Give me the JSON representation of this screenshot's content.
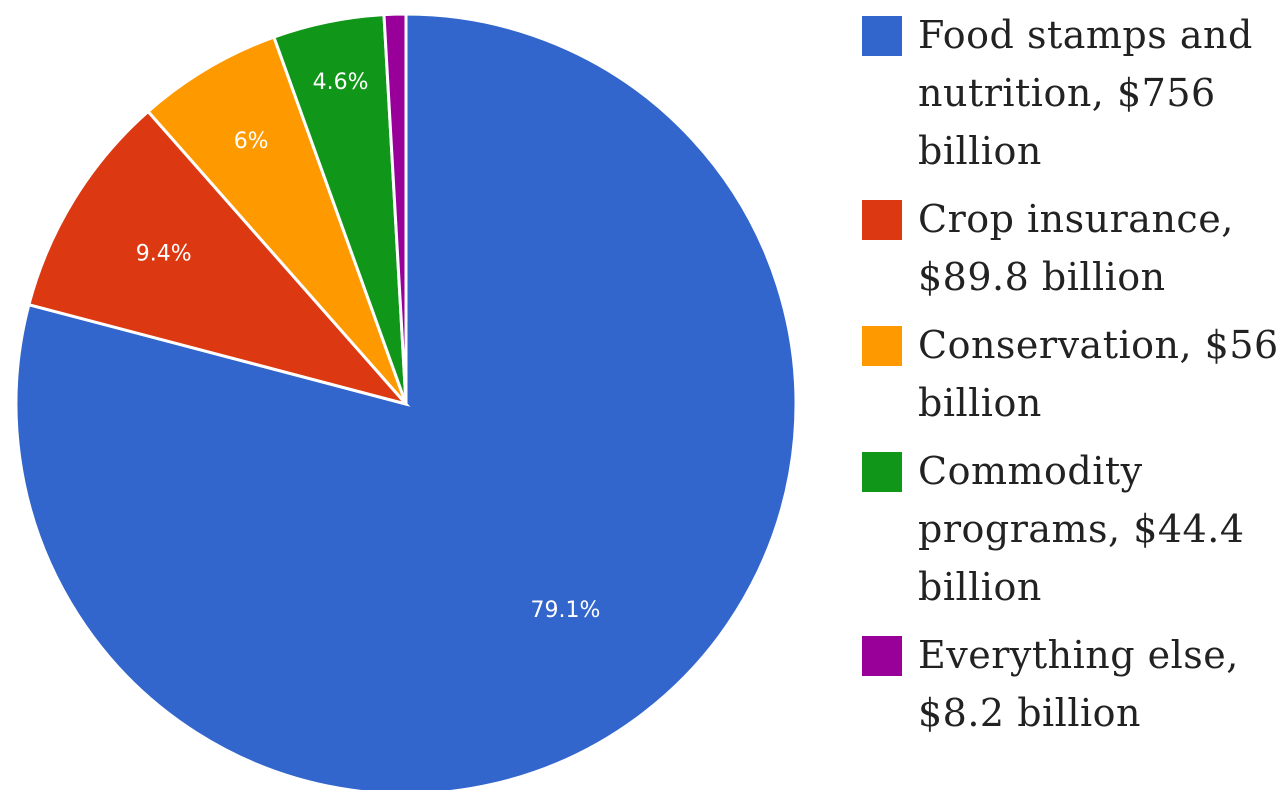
{
  "chart_data": {
    "type": "pie",
    "title": "",
    "slices": [
      {
        "label": "Food stamps and nutrition, $756 billion",
        "value": 79.1,
        "display": "79.1%",
        "color": "#3366cc"
      },
      {
        "label": "Crop insurance, $89.8 billion",
        "value": 9.4,
        "display": "9.4%",
        "color": "#dc3912"
      },
      {
        "label": "Conservation, $56 billion",
        "value": 6.0,
        "display": "6%",
        "color": "#ff9900"
      },
      {
        "label": "Commodity programs, $44.4 billion",
        "value": 4.6,
        "display": "4.6%",
        "color": "#109618"
      },
      {
        "label": "Everything else, $8.2 billion",
        "value": 0.9,
        "display": "",
        "color": "#990099"
      }
    ],
    "legend_position": "right",
    "start_angle": "12 o'clock",
    "direction": "clockwise"
  }
}
